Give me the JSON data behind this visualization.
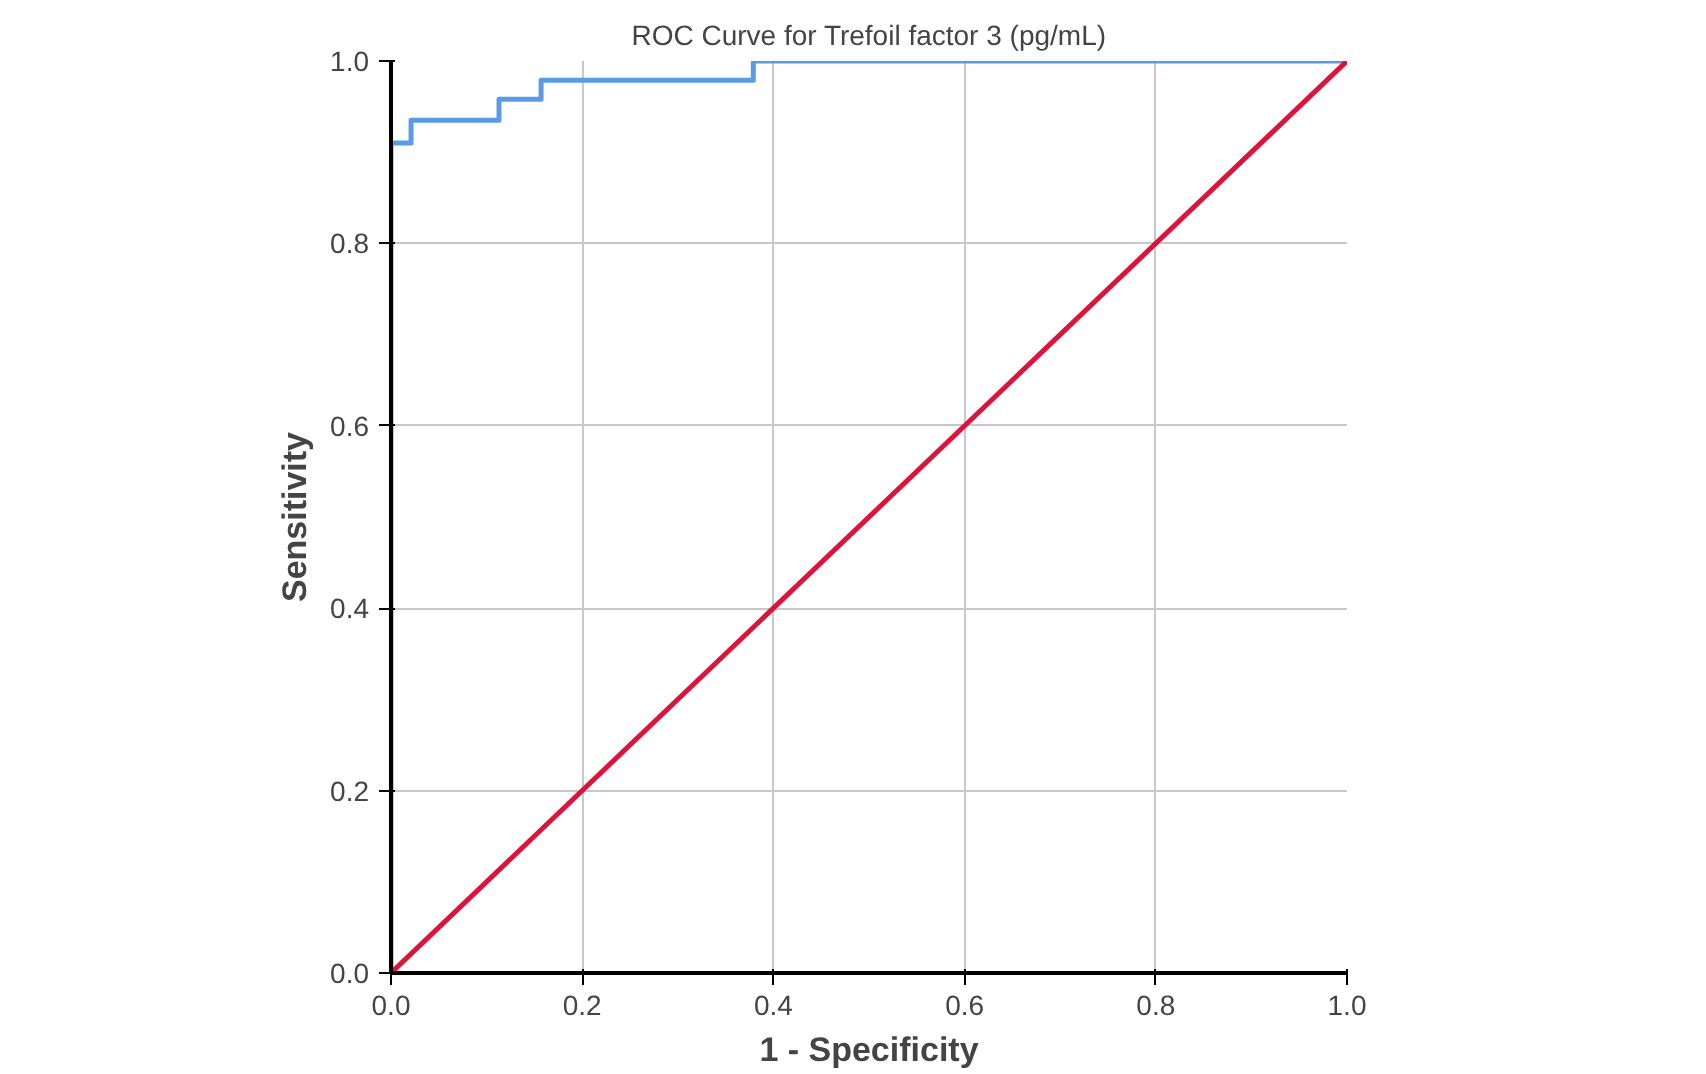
{
  "chart_data": {
    "type": "line",
    "title": "ROC Curve for Trefoil factor 3 (pg/mL)",
    "xlabel": "1 - Specificity",
    "ylabel": "Sensitivity",
    "series": [
      {
        "color": "#5b9be6",
        "x": [
          0,
          0,
          0.021,
          0.021,
          0.113,
          0.113,
          0.157,
          0.157,
          0.379,
          0.379,
          1.0
        ],
        "values": [
          0,
          0.91,
          0.91,
          0.935,
          0.935,
          0.958,
          0.958,
          0.979,
          0.979,
          1.0,
          1.0
        ]
      },
      {
        "color": "#dc143c",
        "x": [
          0,
          1.0
        ],
        "values": [
          0,
          1.0
        ]
      }
    ],
    "xlim": [
      0,
      1.0
    ],
    "ylim": [
      0,
      1.0
    ],
    "xticks": [
      {
        "value": 0,
        "label": "0.0"
      },
      0.2,
      0.4,
      0.6,
      0.8,
      {
        "value": 1.0,
        "label": "1.0"
      }
    ],
    "yticks": [
      {
        "value": 0,
        "label": "0.0"
      },
      0.2,
      0.4,
      0.6,
      0.8,
      {
        "value": 1.0,
        "label": "1.0"
      }
    ],
    "grid": true
  }
}
